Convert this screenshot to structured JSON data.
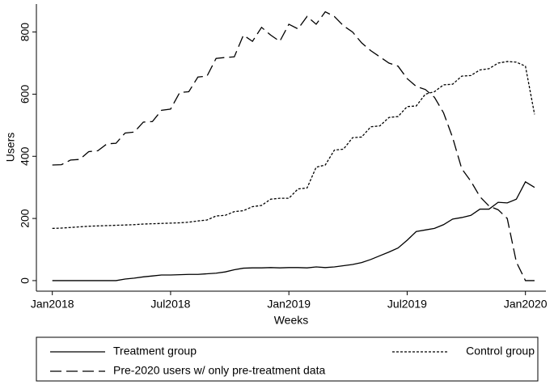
{
  "chart_data": {
    "type": "line",
    "xlabel": "Weeks",
    "ylabel": "Users",
    "x": [
      0,
      2,
      4,
      6,
      8,
      10,
      12,
      14,
      16,
      18,
      20,
      22,
      24,
      26,
      28,
      30,
      32,
      34,
      36,
      38,
      40,
      42,
      44,
      46,
      48,
      50,
      52,
      54,
      56,
      58,
      60,
      62,
      64,
      66,
      68,
      70,
      72,
      74,
      76,
      78,
      80,
      82,
      84,
      86,
      88,
      90,
      92,
      94,
      96,
      98,
      100,
      102,
      104,
      106
    ],
    "xlim": [
      -3.5,
      108.5
    ],
    "xticks": [
      {
        "value": 0,
        "label": "Jan2018"
      },
      {
        "value": 26,
        "label": "Jul2018"
      },
      {
        "value": 52,
        "label": "Jan2019"
      },
      {
        "value": 78,
        "label": "Jul2019"
      },
      {
        "value": 104,
        "label": "Jan2020"
      }
    ],
    "ylim": [
      -34,
      890
    ],
    "yticks": [
      0,
      200,
      400,
      600,
      800
    ],
    "series": [
      {
        "name": "Treatment group",
        "color": "#000000",
        "dash": "none",
        "values": [
          0,
          0,
          0,
          0,
          0,
          0,
          0,
          0,
          5,
          8,
          12,
          15,
          18,
          18,
          19,
          20,
          20,
          22,
          24,
          28,
          35,
          40,
          41,
          41,
          42,
          41,
          42,
          42,
          41,
          44,
          42,
          44,
          48,
          52,
          58,
          68,
          80,
          92,
          105,
          130,
          158,
          163,
          168,
          180,
          198,
          203,
          210,
          230,
          230,
          252,
          250,
          262,
          318,
          300
        ]
      },
      {
        "name": "Control group",
        "color": "#000000",
        "dash": "3,2",
        "values": [
          168,
          169,
          171,
          173,
          175,
          176,
          177,
          178,
          179,
          180,
          182,
          183,
          184,
          185,
          186,
          188,
          192,
          195,
          208,
          210,
          222,
          225,
          238,
          242,
          262,
          265,
          265,
          295,
          298,
          365,
          372,
          420,
          423,
          460,
          462,
          495,
          498,
          525,
          528,
          560,
          562,
          600,
          608,
          630,
          632,
          658,
          660,
          678,
          682,
          700,
          705,
          703,
          690,
          535
        ]
      },
      {
        "name": "Pre-2020 users w/ only pre-treatment data",
        "color": "#000000",
        "dash": "14,6",
        "values": [
          372,
          373,
          388,
          390,
          415,
          418,
          440,
          442,
          475,
          478,
          510,
          512,
          548,
          552,
          605,
          608,
          655,
          658,
          715,
          718,
          720,
          790,
          770,
          815,
          790,
          770,
          825,
          810,
          850,
          825,
          865,
          850,
          820,
          800,
          765,
          740,
          720,
          700,
          690,
          650,
          625,
          615,
          590,
          540,
          460,
          360,
          320,
          270,
          240,
          228,
          200,
          60,
          0,
          0
        ]
      }
    ]
  }
}
